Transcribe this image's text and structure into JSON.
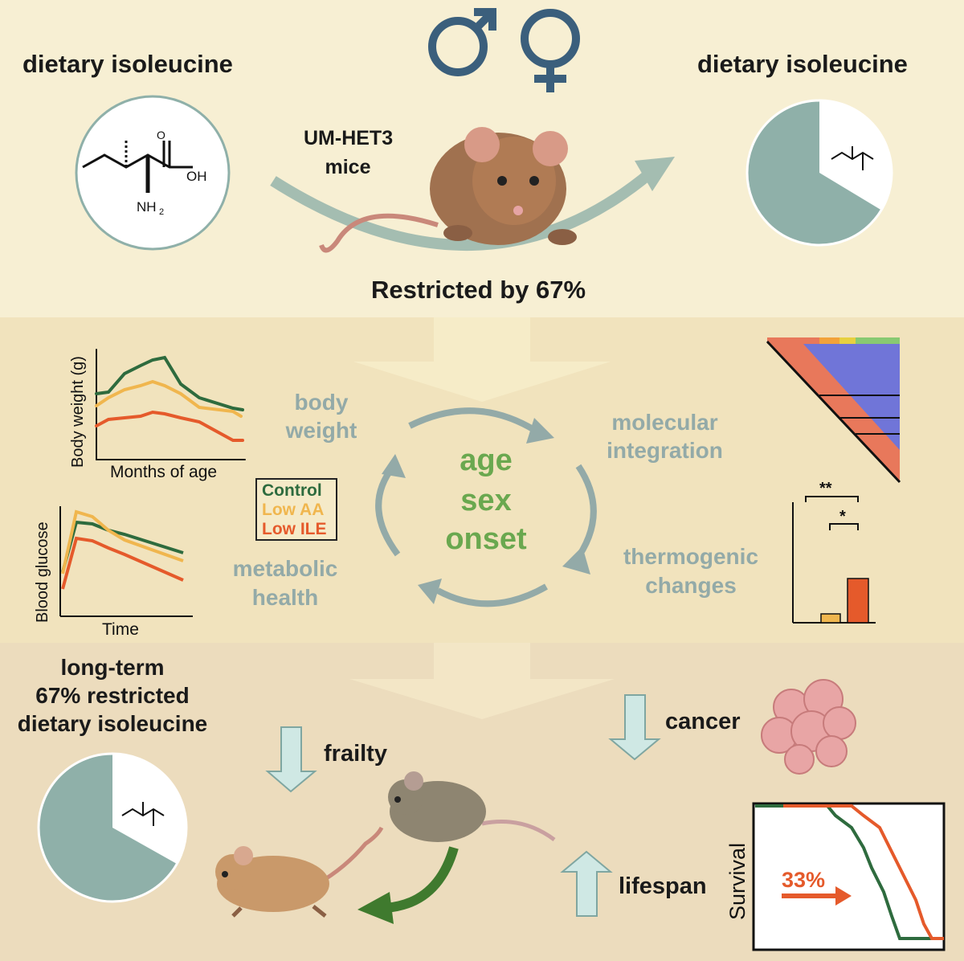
{
  "top": {
    "title_left": "dietary isoleucine",
    "title_right": "dietary isoleucine",
    "mice_label_line1": "UM-HET3",
    "mice_label_line2": "mice",
    "restriction_text": "Restricted by 67%",
    "molecule_labels": {
      "oh": "OH",
      "o": "O",
      "nh2": "NH",
      "sub2": "2"
    }
  },
  "middle": {
    "body_weight_chart": {
      "ylabel": "Body weight (g)",
      "xlabel": "Months of age"
    },
    "glucose_chart": {
      "ylabel": "Blood glucose",
      "xlabel": "Time"
    },
    "legend": [
      {
        "label": "Control",
        "color": "#2e6b3e"
      },
      {
        "label": "Low AA",
        "color": "#f0b64e"
      },
      {
        "label": "Low ILE",
        "color": "#e55a2b"
      }
    ],
    "cycle_center": {
      "line1": "age",
      "line2": "sex",
      "line3": "onset"
    },
    "labels": {
      "body_weight_l1": "body",
      "body_weight_l2": "weight",
      "molecular_l1": "molecular",
      "molecular_l2": "integration",
      "thermogenic_l1": "thermogenic",
      "thermogenic_l2": "changes",
      "metabolic_l1": "metabolic",
      "metabolic_l2": "health"
    },
    "significance": {
      "double": "**",
      "single": "*"
    }
  },
  "bottom": {
    "longterm_l1": "long-term",
    "longterm_l2": "67% restricted",
    "longterm_l3": "dietary isoleucine",
    "frailty": "frailty",
    "cancer": "cancer",
    "lifespan": "lifespan",
    "survival_ylabel": "Survival",
    "survival_gain": "33%"
  },
  "colors": {
    "control": "#2e6b3e",
    "low_aa": "#f0b64e",
    "low_ile": "#e55a2b",
    "pie": "#8fb0a9",
    "sex_symbols": "#3b5f7c",
    "arrow_light": "#cfe8e4"
  }
}
